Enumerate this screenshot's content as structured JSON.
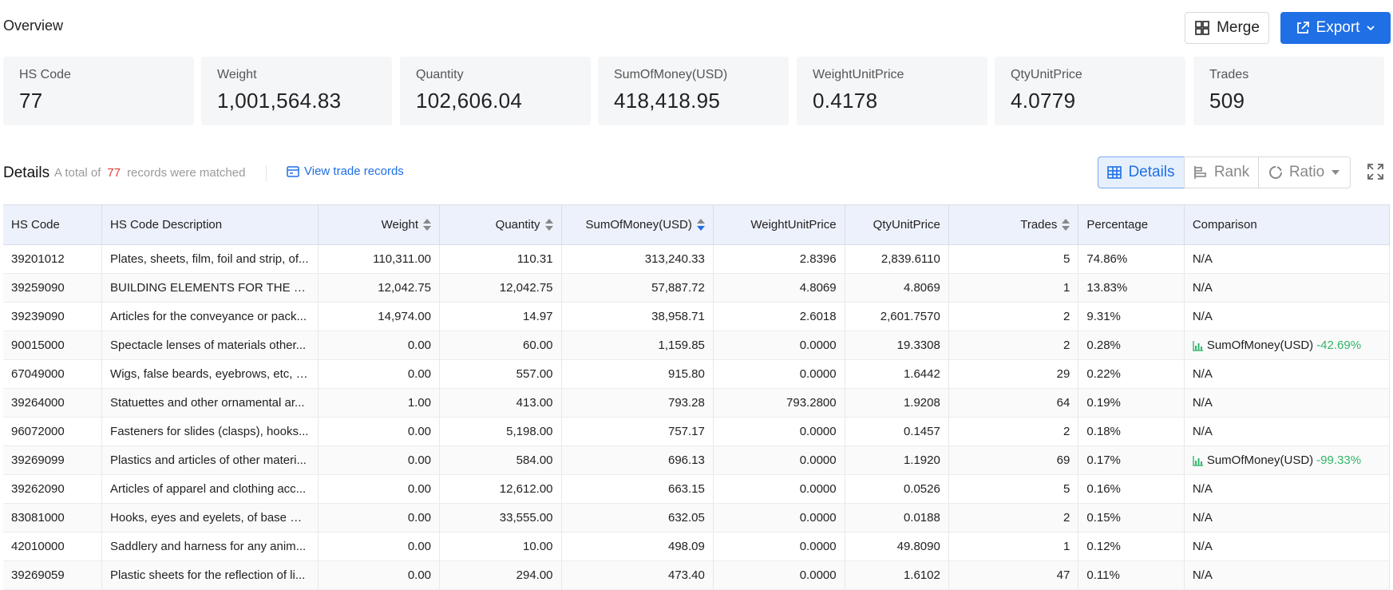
{
  "header": {
    "title": "Overview",
    "merge_label": "Merge",
    "export_label": "Export"
  },
  "stats": [
    {
      "label": "HS Code",
      "value": "77"
    },
    {
      "label": "Weight",
      "value": "1,001,564.83"
    },
    {
      "label": "Quantity",
      "value": "102,606.04"
    },
    {
      "label": "SumOfMoney(USD)",
      "value": "418,418.95"
    },
    {
      "label": "WeightUnitPrice",
      "value": "0.4178"
    },
    {
      "label": "QtyUnitPrice",
      "value": "4.0779"
    },
    {
      "label": "Trades",
      "value": "509"
    }
  ],
  "details": {
    "title": "Details",
    "total_prefix": "A total of",
    "total_count": "77",
    "total_suffix": "records were matched",
    "view_link": "View trade records",
    "views": {
      "details": "Details",
      "rank": "Rank",
      "ratio": "Ratio"
    }
  },
  "table": {
    "columns": [
      "HS Code",
      "HS Code Description",
      "Weight",
      "Quantity",
      "SumOfMoney(USD)",
      "WeightUnitPrice",
      "QtyUnitPrice",
      "Trades",
      "Percentage",
      "Comparison"
    ],
    "rows": [
      {
        "code": "39201012",
        "desc": "Plates, sheets, film, foil and strip, of...",
        "weight": "110,311.00",
        "qty": "110.31",
        "money": "313,240.33",
        "wup": "2.8396",
        "qup": "2,839.6110",
        "trades": "5",
        "pct": "74.86%",
        "cmp": "N/A",
        "cmp_change": ""
      },
      {
        "code": "39259090",
        "desc": "BUILDING ELEMENTS FOR THE MA...",
        "weight": "12,042.75",
        "qty": "12,042.75",
        "money": "57,887.72",
        "wup": "4.8069",
        "qup": "4.8069",
        "trades": "1",
        "pct": "13.83%",
        "cmp": "N/A",
        "cmp_change": ""
      },
      {
        "code": "39239090",
        "desc": "Articles for the conveyance or pack...",
        "weight": "14,974.00",
        "qty": "14.97",
        "money": "38,958.71",
        "wup": "2.6018",
        "qup": "2,601.7570",
        "trades": "2",
        "pct": "9.31%",
        "cmp": "N/A",
        "cmp_change": ""
      },
      {
        "code": "90015000",
        "desc": "Spectacle lenses of materials other...",
        "weight": "0.00",
        "qty": "60.00",
        "money": "1,159.85",
        "wup": "0.0000",
        "qup": "19.3308",
        "trades": "2",
        "pct": "0.28%",
        "cmp": "SumOfMoney(USD)",
        "cmp_change": "-42.69%"
      },
      {
        "code": "67049000",
        "desc": "Wigs, false beards, eyebrows, etc, n...",
        "weight": "0.00",
        "qty": "557.00",
        "money": "915.80",
        "wup": "0.0000",
        "qup": "1.6442",
        "trades": "29",
        "pct": "0.22%",
        "cmp": "N/A",
        "cmp_change": ""
      },
      {
        "code": "39264000",
        "desc": "Statuettes and other ornamental ar...",
        "weight": "1.00",
        "qty": "413.00",
        "money": "793.28",
        "wup": "793.2800",
        "qup": "1.9208",
        "trades": "64",
        "pct": "0.19%",
        "cmp": "N/A",
        "cmp_change": ""
      },
      {
        "code": "96072000",
        "desc": "Fasteners for slides (clasps), hooks...",
        "weight": "0.00",
        "qty": "5,198.00",
        "money": "757.17",
        "wup": "0.0000",
        "qup": "0.1457",
        "trades": "2",
        "pct": "0.18%",
        "cmp": "N/A",
        "cmp_change": ""
      },
      {
        "code": "39269099",
        "desc": "Plastics and articles of other materi...",
        "weight": "0.00",
        "qty": "584.00",
        "money": "696.13",
        "wup": "0.0000",
        "qup": "1.1920",
        "trades": "69",
        "pct": "0.17%",
        "cmp": "SumOfMoney(USD)",
        "cmp_change": "-99.33%"
      },
      {
        "code": "39262090",
        "desc": "Articles of apparel and clothing acc...",
        "weight": "0.00",
        "qty": "12,612.00",
        "money": "663.15",
        "wup": "0.0000",
        "qup": "0.0526",
        "trades": "5",
        "pct": "0.16%",
        "cmp": "N/A",
        "cmp_change": ""
      },
      {
        "code": "83081000",
        "desc": "Hooks, eyes and eyelets, of base m...",
        "weight": "0.00",
        "qty": "33,555.00",
        "money": "632.05",
        "wup": "0.0000",
        "qup": "0.0188",
        "trades": "2",
        "pct": "0.15%",
        "cmp": "N/A",
        "cmp_change": ""
      },
      {
        "code": "42010000",
        "desc": "Saddlery and harness for any anim...",
        "weight": "0.00",
        "qty": "10.00",
        "money": "498.09",
        "wup": "0.0000",
        "qup": "49.8090",
        "trades": "1",
        "pct": "0.12%",
        "cmp": "N/A",
        "cmp_change": ""
      },
      {
        "code": "39269059",
        "desc": "Plastic sheets for the reflection of li...",
        "weight": "0.00",
        "qty": "294.00",
        "money": "473.40",
        "wup": "0.0000",
        "qup": "1.6102",
        "trades": "47",
        "pct": "0.11%",
        "cmp": "N/A",
        "cmp_change": ""
      }
    ]
  },
  "colors": {
    "accent": "#1f6fe5",
    "positive_change": "#2fb56a",
    "highlight_count": "#e23b3b"
  }
}
